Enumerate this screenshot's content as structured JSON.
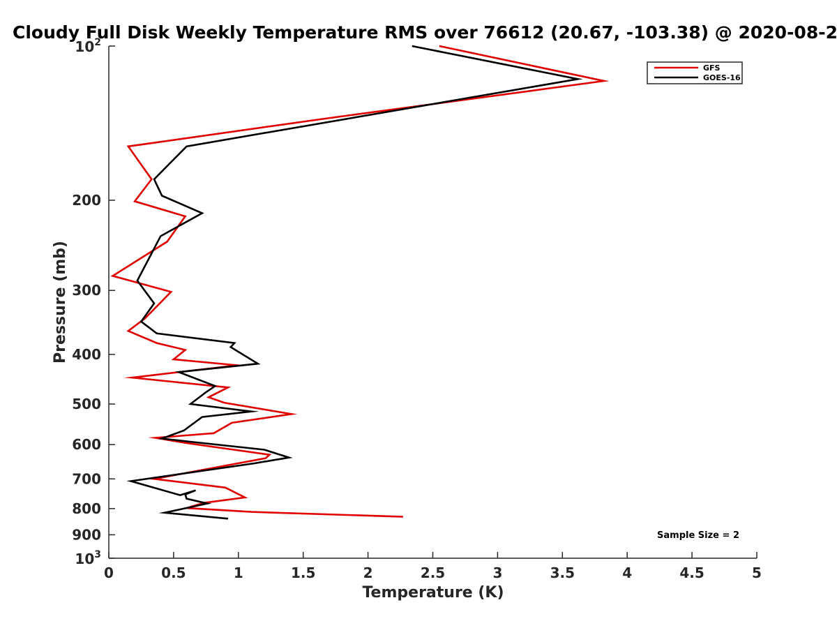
{
  "chart_data": {
    "type": "line",
    "title": "Cloudy Full Disk Weekly Temperature RMS over 76612 (20.67, -103.38) @ 2020-08-2",
    "xlabel": "Temperature (K)",
    "ylabel": "Pressure (mb)",
    "xlim": [
      0,
      5
    ],
    "ylim": [
      100,
      1000
    ],
    "y_scale": "log",
    "y_reversed": true,
    "x_ticks": [
      "0",
      "0.5",
      "1",
      "1.5",
      "2",
      "2.5",
      "3",
      "3.5",
      "4",
      "4.5",
      "5"
    ],
    "y_ticks": [
      {
        "value": 100,
        "base": "10",
        "exp": "2"
      },
      {
        "value": 200,
        "label": "200"
      },
      {
        "value": 300,
        "label": "300"
      },
      {
        "value": 400,
        "label": "400"
      },
      {
        "value": 500,
        "label": "500"
      },
      {
        "value": 600,
        "label": "600"
      },
      {
        "value": 700,
        "label": "700"
      },
      {
        "value": 800,
        "label": "800"
      },
      {
        "value": 900,
        "label": "900"
      },
      {
        "value": 1000,
        "base": "10",
        "exp": "3"
      }
    ],
    "legend_position": "top-right",
    "annotation": "Sample Size = 2",
    "series": [
      {
        "name": "GFS",
        "color": "#e00000",
        "x": [
          2.55,
          3.82,
          1.63,
          0.15,
          0.33,
          0.2,
          0.59,
          0.45,
          0.03,
          0.48,
          0.28,
          0.15,
          0.37,
          0.59,
          0.5,
          0.99,
          0.18,
          0.92,
          0.77,
          0.89,
          1.41,
          0.95,
          0.81,
          0.36,
          0.6,
          1.24,
          1.21,
          0.35,
          0.9,
          1.05,
          0.73,
          0.6,
          1.1,
          2.27
        ],
        "y": [
          100,
          117,
          139,
          157,
          182,
          201,
          215,
          241,
          281,
          302,
          340,
          360,
          380,
          392,
          409,
          420,
          444,
          464,
          485,
          497,
          523,
          544,
          570,
          582,
          596,
          628,
          638,
          700,
          728,
          761,
          780,
          798,
          812,
          830
        ]
      },
      {
        "name": "GOES-16",
        "color": "#000000",
        "x": [
          2.34,
          3.62,
          0.6,
          0.35,
          0.41,
          0.72,
          0.4,
          0.22,
          0.35,
          0.25,
          0.37,
          0.97,
          0.94,
          1.15,
          0.54,
          0.82,
          0.75,
          0.63,
          1.1,
          0.72,
          0.58,
          0.41,
          0.62,
          1.2,
          1.39,
          1.12,
          0.17,
          0.55,
          0.67,
          0.59,
          0.6,
          0.76,
          0.43,
          0.92
        ],
        "y": [
          100,
          116,
          157,
          182,
          196,
          212,
          235,
          287,
          318,
          345,
          364,
          380,
          387,
          417,
          433,
          461,
          474,
          500,
          517,
          530,
          563,
          584,
          592,
          614,
          636,
          653,
          707,
          753,
          737,
          751,
          765,
          782,
          815,
          837
        ]
      }
    ]
  }
}
